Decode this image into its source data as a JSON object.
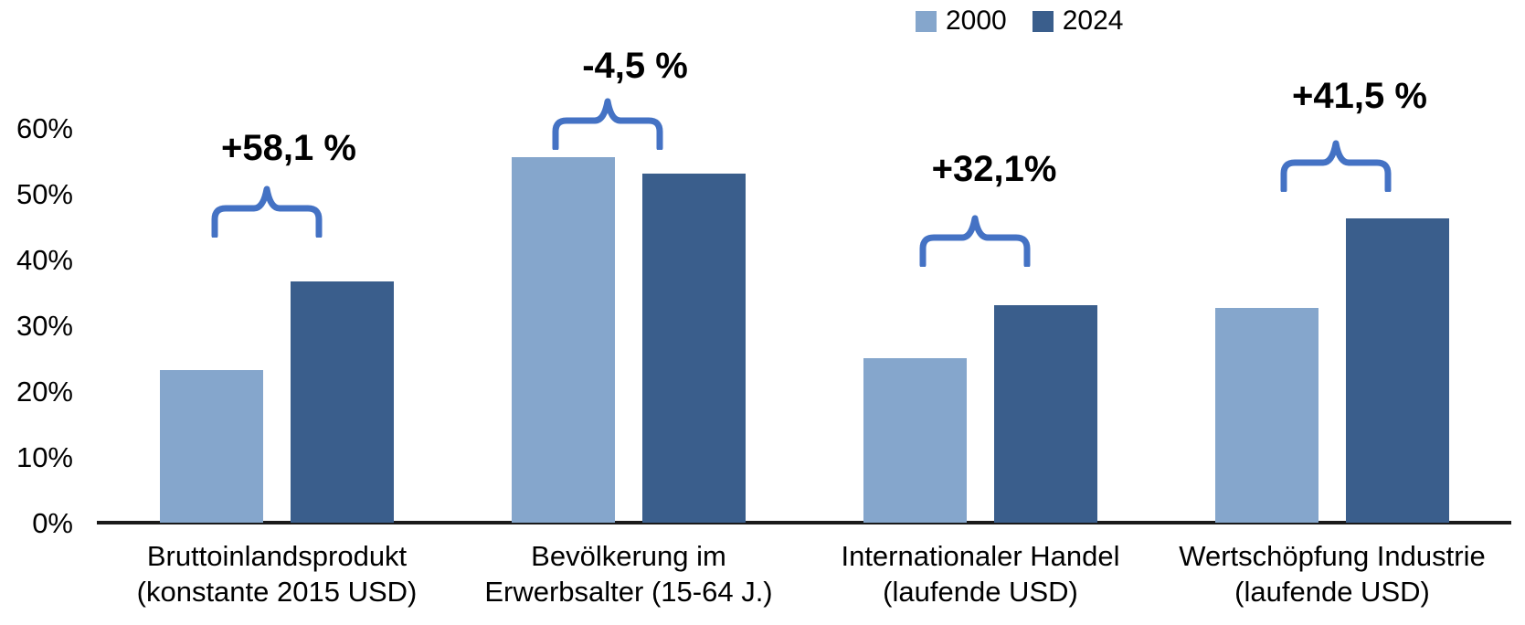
{
  "chart_data": {
    "type": "bar",
    "title": "",
    "xlabel": "",
    "ylabel": "",
    "ylim": [
      0,
      60
    ],
    "grid": false,
    "legend_position": "top-center",
    "yticks": [
      "0%",
      "10%",
      "20%",
      "30%",
      "40%",
      "50%",
      "60%"
    ],
    "series": [
      {
        "name": "2000",
        "color": "#85A6CC",
        "values": [
          23.2,
          55.5,
          25.0,
          32.7
        ]
      },
      {
        "name": "2024",
        "color": "#3A5E8C",
        "values": [
          36.7,
          53.0,
          33.0,
          46.3
        ]
      }
    ],
    "categories": [
      "Bruttoinlandsprodukt (konstante 2015 USD)",
      "Bevölkerung im Erwerbsalter (15-64 J.)",
      "Internationaler Handel (laufende USD)",
      "Wertschöpfung Industrie (laufende USD)"
    ],
    "groups": [
      {
        "label_line1": "Bruttoinlandsprodukt",
        "label_line2": "(konstante 2015 USD)",
        "value_2000": 23.2,
        "value_2024": 36.7,
        "change": "+58,1 %"
      },
      {
        "label_line1": "Bevölkerung im",
        "label_line2": "Erwerbsalter (15-64 J.)",
        "value_2000": 55.5,
        "value_2024": 53.0,
        "change": "-4,5 %"
      },
      {
        "label_line1": "Internationaler Handel",
        "label_line2": "(laufende USD)",
        "value_2000": 25.0,
        "value_2024": 33.0,
        "change": "+32,1%"
      },
      {
        "label_line1": "Wertschöpfung Industrie",
        "label_line2": "(laufende USD)",
        "value_2000": 32.7,
        "value_2024": 46.3,
        "change": "+41,5 %"
      }
    ],
    "annotation_brace_color": "#4472C4",
    "axis_color": "#1a1a1a"
  }
}
